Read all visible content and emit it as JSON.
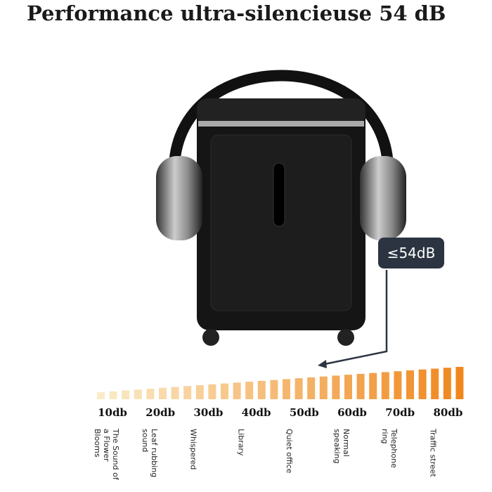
{
  "title": "Performance ultra-silencieuse 54 dB",
  "badge": "≤54dB",
  "scale": [
    {
      "level": "10db",
      "description": "The Sound of a Flower Blooms"
    },
    {
      "level": "20db",
      "description": "Leaf rubbing sound"
    },
    {
      "level": "30db",
      "description": "Whispered"
    },
    {
      "level": "40db",
      "description": "Library"
    },
    {
      "level": "50db",
      "description": "Quiet office"
    },
    {
      "level": "60db",
      "description": "Normal speaking"
    },
    {
      "level": "70db",
      "description": "Telephone ring"
    },
    {
      "level": "80db",
      "description": "Traffic street"
    }
  ]
}
